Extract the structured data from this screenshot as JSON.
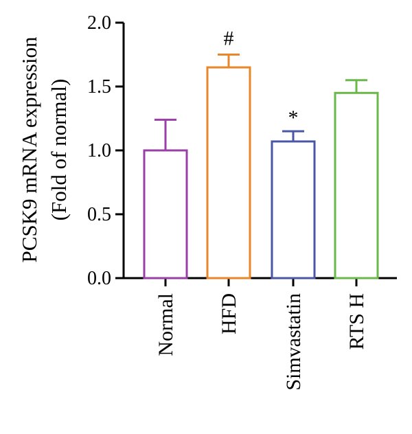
{
  "chart_data": {
    "type": "bar",
    "title": "",
    "ylabel": "PCSK9 mRNA expression",
    "ylabel_sub": "(Fold of normal)",
    "xlabel": "",
    "ylim": [
      0,
      2.0
    ],
    "yticks": [
      0.0,
      0.5,
      1.0,
      1.5,
      2.0
    ],
    "ytick_labels": [
      "0.0",
      "0.5",
      "1.0",
      "1.5",
      "2.0"
    ],
    "categories": [
      "Normal",
      "HFD",
      "Simvastatin",
      "RTS H"
    ],
    "values": [
      1.0,
      1.65,
      1.07,
      1.45
    ],
    "errors": [
      0.24,
      0.1,
      0.08,
      0.1
    ],
    "annotations": [
      "",
      "#",
      "*",
      ""
    ],
    "colors": [
      "#9b3fa8",
      "#e8862a",
      "#4a56a6",
      "#6ab84a"
    ],
    "grid": false,
    "legend": "none"
  }
}
